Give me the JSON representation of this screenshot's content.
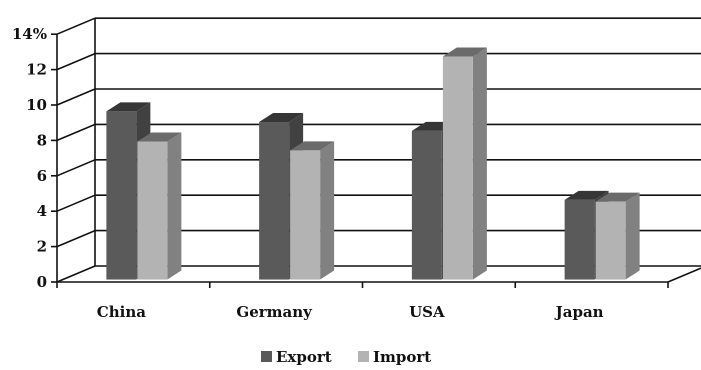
{
  "chart_data": {
    "type": "bar",
    "categories": [
      "China",
      "Germany",
      "USA",
      "Japan"
    ],
    "series": [
      {
        "name": "Export",
        "values": [
          9.5,
          8.9,
          8.4,
          4.5
        ],
        "color": "#5a5a5a"
      },
      {
        "name": "Import",
        "values": [
          7.8,
          7.3,
          12.6,
          4.4
        ],
        "color": "#b3b3b3"
      }
    ],
    "ylim": [
      0,
      14
    ],
    "y_ticks": [
      "0",
      "2",
      "4",
      "6",
      "8",
      "10",
      "12",
      "14%"
    ],
    "grid": true,
    "legend_position": "bottom"
  }
}
